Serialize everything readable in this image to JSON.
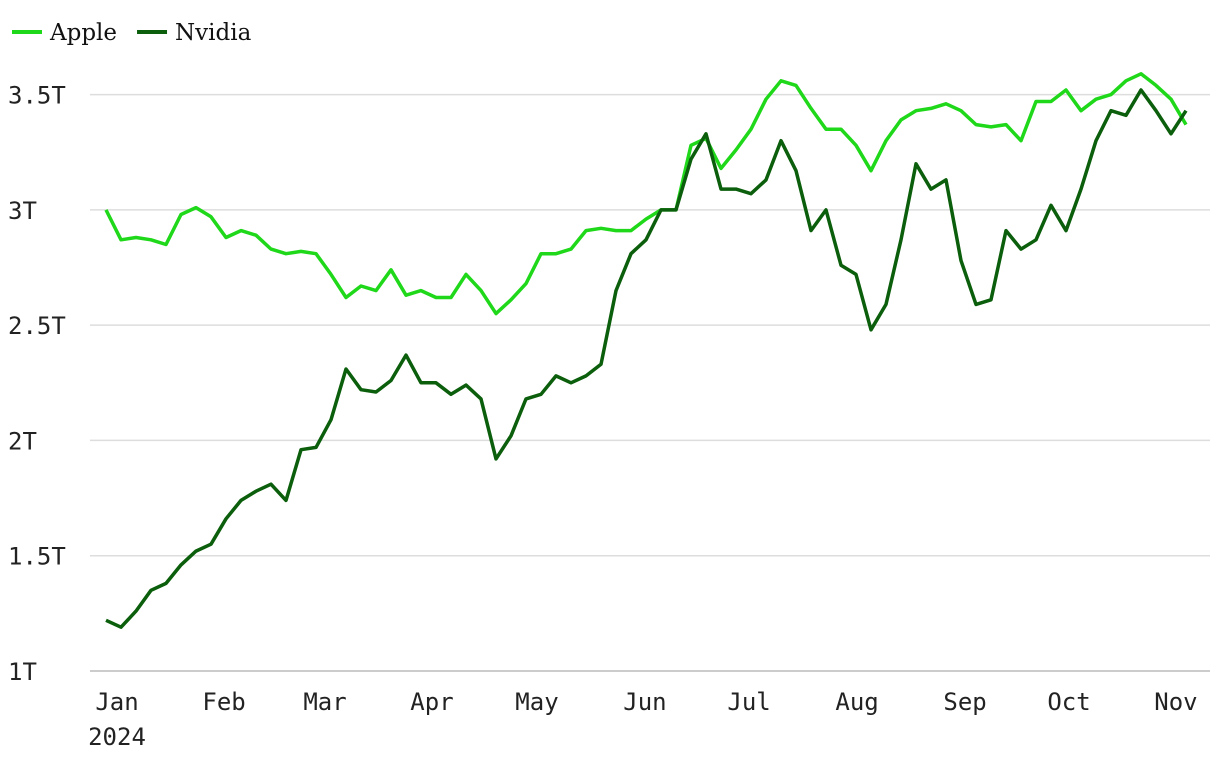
{
  "chart_data": {
    "type": "line",
    "year_label": "2024",
    "xlim": [
      -1.07,
      73.6
    ],
    "xticks": [
      {
        "value": 0.73,
        "label": "Jan"
      },
      {
        "value": 7.87,
        "label": "Feb"
      },
      {
        "value": 14.6,
        "label": "Mar"
      },
      {
        "value": 21.73,
        "label": "Apr"
      },
      {
        "value": 28.73,
        "label": "May"
      },
      {
        "value": 35.93,
        "label": "Jun"
      },
      {
        "value": 42.87,
        "label": "Jul"
      },
      {
        "value": 50.07,
        "label": "Aug"
      },
      {
        "value": 57.27,
        "label": "Sep"
      },
      {
        "value": 64.2,
        "label": "Oct"
      },
      {
        "value": 71.33,
        "label": "Nov"
      }
    ],
    "ylim": [
      1,
      3.65
    ],
    "yticks": [
      {
        "value": 1,
        "label": "1T"
      },
      {
        "value": 1.5,
        "label": "1.5T"
      },
      {
        "value": 2,
        "label": "2T"
      },
      {
        "value": 2.5,
        "label": "2.5T"
      },
      {
        "value": 3,
        "label": "3T"
      },
      {
        "value": 3.5,
        "label": "3.5T"
      }
    ],
    "grid": true,
    "legend": "top-left",
    "series": [
      {
        "name": "Apple",
        "color": "#1fd81a",
        "values": [
          3.0,
          2.87,
          2.88,
          2.87,
          2.85,
          2.98,
          3.01,
          2.97,
          2.88,
          2.91,
          2.89,
          2.83,
          2.81,
          2.82,
          2.81,
          2.72,
          2.62,
          2.67,
          2.65,
          2.74,
          2.63,
          2.65,
          2.62,
          2.62,
          2.72,
          2.65,
          2.55,
          2.61,
          2.68,
          2.81,
          2.81,
          2.83,
          2.91,
          2.92,
          2.91,
          2.91,
          2.96,
          3.0,
          3.0,
          3.28,
          3.31,
          3.18,
          3.26,
          3.35,
          3.48,
          3.56,
          3.54,
          3.44,
          3.35,
          3.35,
          3.28,
          3.17,
          3.3,
          3.39,
          3.43,
          3.44,
          3.46,
          3.43,
          3.37,
          3.36,
          3.37,
          3.3,
          3.47,
          3.47,
          3.52,
          3.43,
          3.48,
          3.5,
          3.56,
          3.59,
          3.54,
          3.48,
          3.37
        ]
      },
      {
        "name": "Nvidia",
        "color": "#0b5e0b",
        "values": [
          1.22,
          1.19,
          1.26,
          1.35,
          1.38,
          1.46,
          1.52,
          1.55,
          1.66,
          1.74,
          1.78,
          1.81,
          1.74,
          1.96,
          1.97,
          2.09,
          2.31,
          2.22,
          2.21,
          2.26,
          2.37,
          2.25,
          2.25,
          2.2,
          2.24,
          2.18,
          1.92,
          2.02,
          2.18,
          2.2,
          2.28,
          2.25,
          2.28,
          2.33,
          2.65,
          2.81,
          2.87,
          3.0,
          3.0,
          3.22,
          3.33,
          3.09,
          3.09,
          3.07,
          3.13,
          3.3,
          3.17,
          2.91,
          3.0,
          2.76,
          2.72,
          2.48,
          2.59,
          2.87,
          3.2,
          3.09,
          3.13,
          2.78,
          2.59,
          2.61,
          2.91,
          2.83,
          2.87,
          3.02,
          2.91,
          3.09,
          3.3,
          3.43,
          3.41,
          3.52,
          3.43,
          3.33,
          3.43
        ]
      }
    ]
  }
}
